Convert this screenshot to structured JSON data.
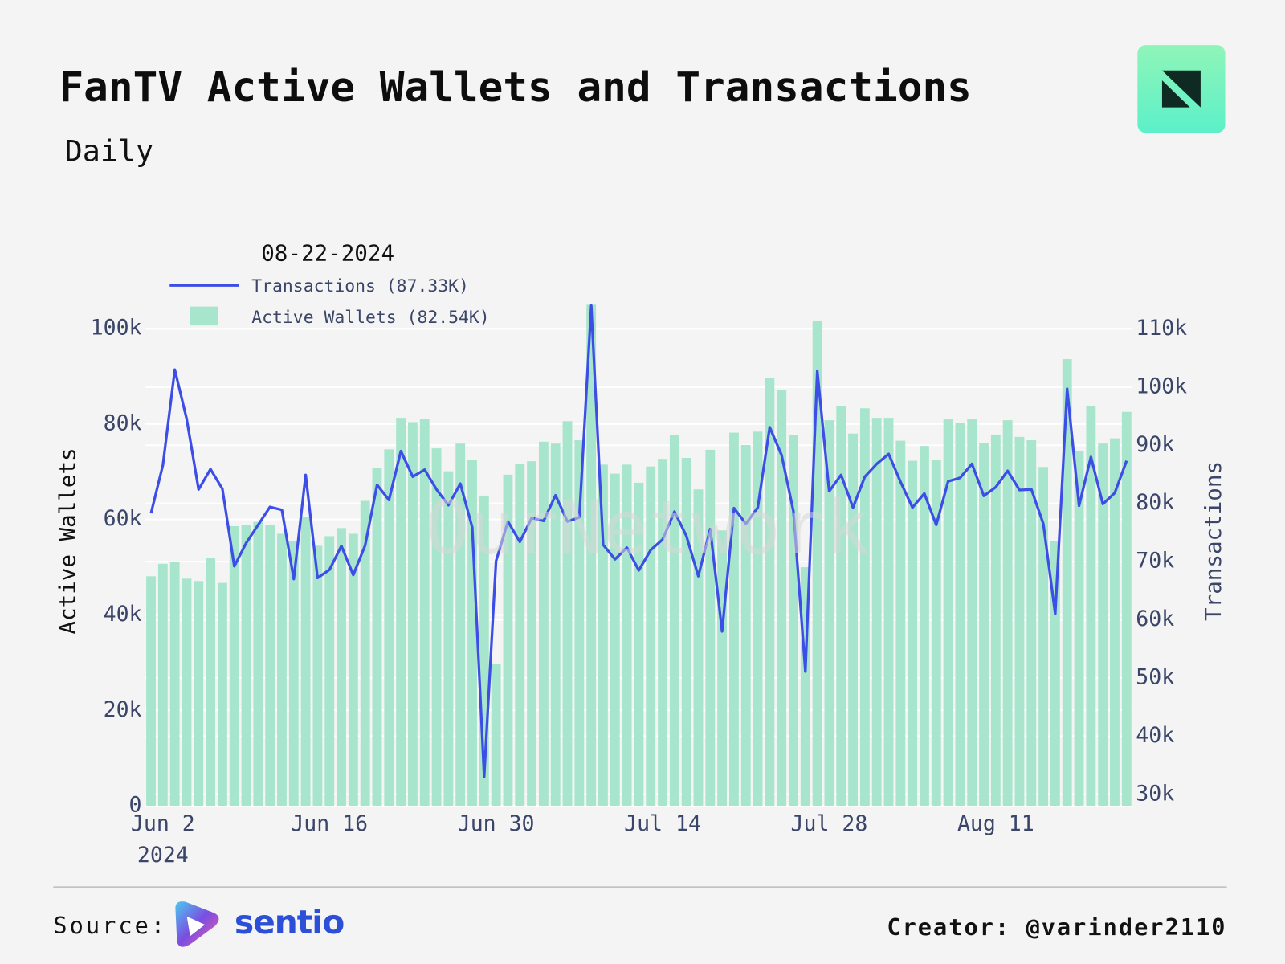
{
  "chart_data": {
    "type": "combo",
    "title": "FanTV Active Wallets and Transactions",
    "subtitle": "Daily",
    "watermark": "OurNetwork",
    "hover_label": "08-22-2024",
    "y_label": "Active Wallets",
    "y2_label": "Transactions",
    "x": [
      "2024-06-01",
      "2024-06-02",
      "2024-06-03",
      "2024-06-04",
      "2024-06-05",
      "2024-06-06",
      "2024-06-07",
      "2024-06-08",
      "2024-06-09",
      "2024-06-10",
      "2024-06-11",
      "2024-06-12",
      "2024-06-13",
      "2024-06-14",
      "2024-06-15",
      "2024-06-16",
      "2024-06-17",
      "2024-06-18",
      "2024-06-19",
      "2024-06-20",
      "2024-06-21",
      "2024-06-22",
      "2024-06-23",
      "2024-06-24",
      "2024-06-25",
      "2024-06-26",
      "2024-06-27",
      "2024-06-28",
      "2024-06-29",
      "2024-06-30",
      "2024-07-01",
      "2024-07-02",
      "2024-07-03",
      "2024-07-04",
      "2024-07-05",
      "2024-07-06",
      "2024-07-07",
      "2024-07-08",
      "2024-07-09",
      "2024-07-10",
      "2024-07-11",
      "2024-07-12",
      "2024-07-13",
      "2024-07-14",
      "2024-07-15",
      "2024-07-16",
      "2024-07-17",
      "2024-07-18",
      "2024-07-19",
      "2024-07-20",
      "2024-07-21",
      "2024-07-22",
      "2024-07-23",
      "2024-07-24",
      "2024-07-25",
      "2024-07-26",
      "2024-07-27",
      "2024-07-28",
      "2024-07-29",
      "2024-07-30",
      "2024-07-31",
      "2024-08-01",
      "2024-08-02",
      "2024-08-03",
      "2024-08-04",
      "2024-08-05",
      "2024-08-06",
      "2024-08-07",
      "2024-08-08",
      "2024-08-09",
      "2024-08-10",
      "2024-08-11",
      "2024-08-12",
      "2024-08-13",
      "2024-08-14",
      "2024-08-15",
      "2024-08-16",
      "2024-08-17",
      "2024-08-18",
      "2024-08-19",
      "2024-08-20",
      "2024-08-21",
      "2024-08-22"
    ],
    "xlim": [
      "2024-05-31T12:00",
      "2024-08-22T12:00"
    ],
    "xticks": [
      {
        "value": "2024-06-02",
        "label": "Jun 2",
        "sublabel": "2024"
      },
      {
        "value": "2024-06-16",
        "label": "Jun 16"
      },
      {
        "value": "2024-06-30",
        "label": "Jun 30"
      },
      {
        "value": "2024-07-14",
        "label": "Jul 14"
      },
      {
        "value": "2024-07-28",
        "label": "Jul 28"
      },
      {
        "value": "2024-08-11",
        "label": "Aug 11"
      }
    ],
    "ylim": [
      0,
      105300
    ],
    "yticks": [
      0,
      {
        "value": 20000,
        "label": "20k"
      },
      {
        "value": 40000,
        "label": "40k"
      },
      {
        "value": 60000,
        "label": "60k"
      },
      {
        "value": 80000,
        "label": "80k"
      },
      {
        "value": 100000,
        "label": "100k"
      }
    ],
    "y2lim": [
      28030,
      114400
    ],
    "y2ticks": [
      {
        "value": 30000,
        "label": "30k"
      },
      {
        "value": 40000,
        "label": "40k"
      },
      {
        "value": 50000,
        "label": "50k"
      },
      {
        "value": 60000,
        "label": "60k"
      },
      {
        "value": 70000,
        "label": "70k"
      },
      {
        "value": 80000,
        "label": "80k"
      },
      {
        "value": 90000,
        "label": "90k"
      },
      {
        "value": 100000,
        "label": "100k"
      },
      {
        "value": 110000,
        "label": "110k"
      }
    ],
    "grid": true,
    "legend": "top-left",
    "series": [
      {
        "name": "Transactions (87.33K)",
        "type": "line",
        "axis": "y2",
        "color": "#3d4ee6",
        "values": [
          78300,
          86600,
          103000,
          94500,
          82400,
          85900,
          82500,
          69200,
          73200,
          76300,
          79400,
          78900,
          67000,
          84900,
          67200,
          68600,
          72700,
          67700,
          72800,
          83200,
          80600,
          89000,
          84600,
          85800,
          82400,
          79700,
          83400,
          75900,
          33000,
          70100,
          76900,
          73400,
          77500,
          77000,
          81400,
          76900,
          77600,
          114000,
          72900,
          70400,
          72400,
          68500,
          72000,
          73800,
          78600,
          74400,
          67500,
          75600,
          58000,
          79200,
          76500,
          79300,
          93100,
          88300,
          78600,
          51100,
          102800,
          82100,
          84900,
          79300,
          84600,
          86800,
          88500,
          83700,
          79300,
          81700,
          76300,
          83800,
          84400,
          86800,
          81300,
          82800,
          85600,
          82300,
          82400,
          76500,
          61000,
          99700,
          79600,
          88000,
          79900,
          81800,
          87330
        ]
      },
      {
        "name": "Active Wallets (82.54K)",
        "type": "bar",
        "axis": "y",
        "color": "#a7e6cc",
        "values": [
          48100,
          50700,
          51200,
          47600,
          47100,
          51900,
          46700,
          58600,
          58900,
          59500,
          58900,
          57000,
          55500,
          60500,
          54500,
          56500,
          58200,
          57000,
          63900,
          70800,
          74700,
          81300,
          80400,
          81100,
          74900,
          70100,
          75900,
          72500,
          65000,
          29700,
          69400,
          71600,
          72200,
          76300,
          75900,
          80600,
          76600,
          105000,
          71500,
          69600,
          71500,
          67700,
          71100,
          72700,
          77700,
          72900,
          66300,
          74600,
          57700,
          78200,
          75600,
          78400,
          89700,
          87100,
          77700,
          50000,
          101700,
          80800,
          83800,
          78000,
          83300,
          81300,
          81300,
          76500,
          72300,
          75400,
          72500,
          81100,
          80200,
          81100,
          76100,
          77800,
          80800,
          77300,
          76600,
          71000,
          55500,
          93600,
          74400,
          83700,
          75900,
          77000,
          82540
        ]
      }
    ]
  },
  "footer": {
    "source_label": "Source:",
    "source_name": "sentio",
    "creator": "Creator: @varinder2110"
  }
}
